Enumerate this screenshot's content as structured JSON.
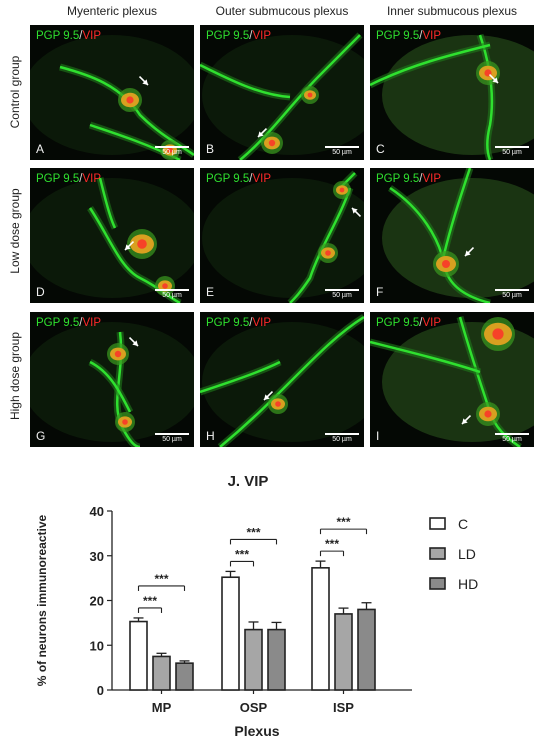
{
  "columns": [
    "Myenteric plexus",
    "Outer submucous plexus",
    "Inner submucous plexus"
  ],
  "rows": [
    "Control group",
    "Low dose group",
    "High dose group"
  ],
  "stain": {
    "green": "PGP 9.5",
    "sep": "/",
    "red": "VIP"
  },
  "scale_bar": "50 µm",
  "panels": [
    "A",
    "B",
    "C",
    "D",
    "E",
    "F",
    "G",
    "H",
    "I"
  ],
  "colors": {
    "pgp": "#2fe02f",
    "vip": "#ff2a2a",
    "merge": "#d8a020"
  },
  "chart_data": {
    "type": "bar",
    "title": "J. VIP",
    "xlabel": "Plexus",
    "ylabel": "% of neurons immunoreactive",
    "categories": [
      "MP",
      "OSP",
      "ISP"
    ],
    "ylim": [
      0,
      40
    ],
    "yticks": [
      0,
      10,
      20,
      30,
      40
    ],
    "series": [
      {
        "name": "C",
        "values": [
          15.3,
          25.2,
          27.3
        ],
        "errors": [
          0.8,
          1.3,
          1.5
        ],
        "color": "#ffffff"
      },
      {
        "name": "LD",
        "values": [
          7.5,
          13.5,
          17.0
        ],
        "errors": [
          0.7,
          1.7,
          1.3
        ],
        "color": "#a6a6a6"
      },
      {
        "name": "HD",
        "values": [
          6.0,
          13.5,
          18.0
        ],
        "errors": [
          0.5,
          1.6,
          1.5
        ],
        "color": "#8a8a8a"
      }
    ],
    "significance": [
      {
        "category": "MP",
        "from": "C",
        "to": "LD",
        "label": "***"
      },
      {
        "category": "MP",
        "from": "C",
        "to": "HD",
        "label": "***"
      },
      {
        "category": "OSP",
        "from": "C",
        "to": "LD",
        "label": "***"
      },
      {
        "category": "OSP",
        "from": "C",
        "to": "HD",
        "label": "***"
      },
      {
        "category": "ISP",
        "from": "C",
        "to": "LD",
        "label": "***"
      },
      {
        "category": "ISP",
        "from": "C",
        "to": "HD",
        "label": "***"
      }
    ],
    "grid": false,
    "legend_position": "right"
  }
}
